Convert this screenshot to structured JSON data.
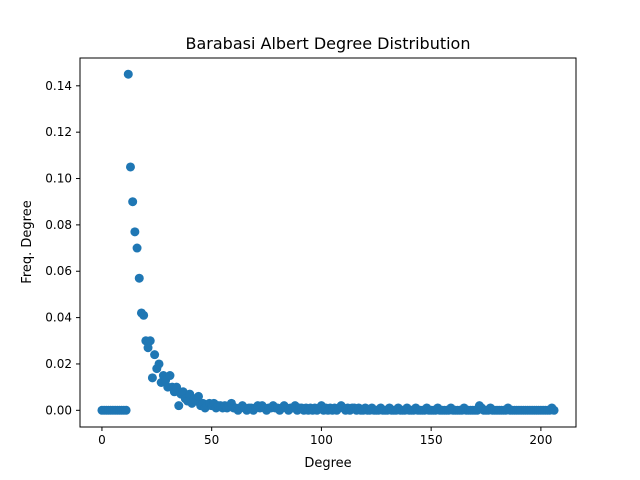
{
  "chart_data": {
    "type": "scatter",
    "title": "Barabasi Albert Degree Distribution",
    "xlabel": "Degree",
    "ylabel": "Freq. Degree",
    "xlim": [
      -10,
      216
    ],
    "ylim": [
      -0.0072,
      0.152
    ],
    "xticks": [
      0,
      50,
      100,
      150,
      200
    ],
    "xtick_labels": [
      "0",
      "50",
      "100",
      "150",
      "200"
    ],
    "yticks": [
      0.0,
      0.02,
      0.04,
      0.06,
      0.08,
      0.1,
      0.12,
      0.14
    ],
    "ytick_labels": [
      "0.00",
      "0.02",
      "0.04",
      "0.06",
      "0.08",
      "0.10",
      "0.12",
      "0.14"
    ],
    "grid": false,
    "legend": "none",
    "marker_color": "#1f77b4",
    "points": [
      [
        0,
        0.0
      ],
      [
        1,
        0.0
      ],
      [
        2,
        0.0
      ],
      [
        3,
        0.0
      ],
      [
        4,
        0.0
      ],
      [
        5,
        0.0
      ],
      [
        6,
        0.0
      ],
      [
        7,
        0.0
      ],
      [
        8,
        0.0
      ],
      [
        9,
        0.0
      ],
      [
        10,
        0.0
      ],
      [
        11,
        0.0
      ],
      [
        12,
        0.145
      ],
      [
        13,
        0.105
      ],
      [
        14,
        0.09
      ],
      [
        15,
        0.077
      ],
      [
        16,
        0.07
      ],
      [
        17,
        0.057
      ],
      [
        18,
        0.042
      ],
      [
        19,
        0.041
      ],
      [
        20,
        0.03
      ],
      [
        21,
        0.027
      ],
      [
        22,
        0.03
      ],
      [
        23,
        0.014
      ],
      [
        24,
        0.024
      ],
      [
        25,
        0.018
      ],
      [
        26,
        0.02
      ],
      [
        27,
        0.012
      ],
      [
        28,
        0.015
      ],
      [
        29,
        0.013
      ],
      [
        30,
        0.01
      ],
      [
        31,
        0.015
      ],
      [
        32,
        0.01
      ],
      [
        33,
        0.008
      ],
      [
        34,
        0.01
      ],
      [
        35,
        0.002
      ],
      [
        36,
        0.007
      ],
      [
        37,
        0.008
      ],
      [
        38,
        0.005
      ],
      [
        39,
        0.004
      ],
      [
        40,
        0.007
      ],
      [
        41,
        0.003
      ],
      [
        42,
        0.005
      ],
      [
        43,
        0.004
      ],
      [
        44,
        0.006
      ],
      [
        45,
        0.002
      ],
      [
        46,
        0.003
      ],
      [
        47,
        0.001
      ],
      [
        48,
        0.002
      ],
      [
        49,
        0.003
      ],
      [
        50,
        0.002
      ],
      [
        51,
        0.003
      ],
      [
        52,
        0.001
      ],
      [
        53,
        0.002
      ],
      [
        54,
        0.002
      ],
      [
        55,
        0.001
      ],
      [
        56,
        0.002
      ],
      [
        57,
        0.001
      ],
      [
        58,
        0.002
      ],
      [
        59,
        0.003
      ],
      [
        60,
        0.001
      ],
      [
        61,
        0.001
      ],
      [
        62,
        0.0
      ],
      [
        63,
        0.001
      ],
      [
        64,
        0.002
      ],
      [
        65,
        0.001
      ],
      [
        66,
        0.0
      ],
      [
        67,
        0.001
      ],
      [
        68,
        0.001
      ],
      [
        69,
        0.0
      ],
      [
        70,
        0.001
      ],
      [
        71,
        0.002
      ],
      [
        72,
        0.001
      ],
      [
        73,
        0.002
      ],
      [
        74,
        0.001
      ],
      [
        75,
        0.0
      ],
      [
        76,
        0.001
      ],
      [
        77,
        0.001
      ],
      [
        78,
        0.002
      ],
      [
        79,
        0.001
      ],
      [
        80,
        0.001
      ],
      [
        81,
        0.0
      ],
      [
        82,
        0.001
      ],
      [
        83,
        0.002
      ],
      [
        84,
        0.001
      ],
      [
        85,
        0.0
      ],
      [
        86,
        0.001
      ],
      [
        87,
        0.001
      ],
      [
        88,
        0.002
      ],
      [
        89,
        0.0
      ],
      [
        90,
        0.001
      ],
      [
        91,
        0.001
      ],
      [
        92,
        0.0
      ],
      [
        93,
        0.001
      ],
      [
        94,
        0.0
      ],
      [
        95,
        0.001
      ],
      [
        96,
        0.0
      ],
      [
        97,
        0.001
      ],
      [
        98,
        0.0
      ],
      [
        99,
        0.001
      ],
      [
        100,
        0.002
      ],
      [
        101,
        0.0
      ],
      [
        102,
        0.001
      ],
      [
        103,
        0.0
      ],
      [
        104,
        0.001
      ],
      [
        105,
        0.0
      ],
      [
        106,
        0.001
      ],
      [
        107,
        0.0
      ],
      [
        108,
        0.001
      ],
      [
        109,
        0.002
      ],
      [
        110,
        0.001
      ],
      [
        111,
        0.0
      ],
      [
        112,
        0.001
      ],
      [
        113,
        0.0
      ],
      [
        114,
        0.001
      ],
      [
        115,
        0.001
      ],
      [
        116,
        0.0
      ],
      [
        117,
        0.001
      ],
      [
        118,
        0.0
      ],
      [
        119,
        0.0
      ],
      [
        120,
        0.001
      ],
      [
        121,
        0.0
      ],
      [
        122,
        0.0
      ],
      [
        123,
        0.001
      ],
      [
        124,
        0.0
      ],
      [
        125,
        0.0
      ],
      [
        126,
        0.0
      ],
      [
        127,
        0.001
      ],
      [
        128,
        0.0
      ],
      [
        129,
        0.0
      ],
      [
        130,
        0.0
      ],
      [
        131,
        0.001
      ],
      [
        132,
        0.0
      ],
      [
        133,
        0.0
      ],
      [
        134,
        0.0
      ],
      [
        135,
        0.001
      ],
      [
        136,
        0.0
      ],
      [
        137,
        0.0
      ],
      [
        138,
        0.0
      ],
      [
        139,
        0.001
      ],
      [
        140,
        0.0
      ],
      [
        141,
        0.0
      ],
      [
        142,
        0.0
      ],
      [
        143,
        0.001
      ],
      [
        144,
        0.0
      ],
      [
        145,
        0.0
      ],
      [
        146,
        0.0
      ],
      [
        147,
        0.0
      ],
      [
        148,
        0.001
      ],
      [
        149,
        0.0
      ],
      [
        150,
        0.0
      ],
      [
        151,
        0.0
      ],
      [
        152,
        0.0
      ],
      [
        153,
        0.001
      ],
      [
        154,
        0.0
      ],
      [
        155,
        0.0
      ],
      [
        156,
        0.0
      ],
      [
        157,
        0.0
      ],
      [
        158,
        0.0
      ],
      [
        159,
        0.001
      ],
      [
        160,
        0.0
      ],
      [
        161,
        0.0
      ],
      [
        162,
        0.0
      ],
      [
        163,
        0.0
      ],
      [
        164,
        0.0
      ],
      [
        165,
        0.001
      ],
      [
        166,
        0.0
      ],
      [
        167,
        0.0
      ],
      [
        168,
        0.0
      ],
      [
        169,
        0.0
      ],
      [
        170,
        0.0
      ],
      [
        171,
        0.0
      ],
      [
        172,
        0.002
      ],
      [
        173,
        0.001
      ],
      [
        174,
        0.0
      ],
      [
        175,
        0.0
      ],
      [
        176,
        0.0
      ],
      [
        177,
        0.001
      ],
      [
        178,
        0.0
      ],
      [
        179,
        0.0
      ],
      [
        180,
        0.0
      ],
      [
        181,
        0.0
      ],
      [
        182,
        0.0
      ],
      [
        183,
        0.0
      ],
      [
        184,
        0.0
      ],
      [
        185,
        0.001
      ],
      [
        186,
        0.0
      ],
      [
        187,
        0.0
      ],
      [
        188,
        0.0
      ],
      [
        189,
        0.0
      ],
      [
        190,
        0.0
      ],
      [
        191,
        0.0
      ],
      [
        192,
        0.0
      ],
      [
        193,
        0.0
      ],
      [
        194,
        0.0
      ],
      [
        195,
        0.0
      ],
      [
        196,
        0.0
      ],
      [
        197,
        0.0
      ],
      [
        198,
        0.0
      ],
      [
        199,
        0.0
      ],
      [
        200,
        0.0
      ],
      [
        201,
        0.0
      ],
      [
        202,
        0.0
      ],
      [
        203,
        0.0
      ],
      [
        204,
        0.0
      ],
      [
        205,
        0.001
      ],
      [
        206,
        0.0
      ]
    ]
  }
}
